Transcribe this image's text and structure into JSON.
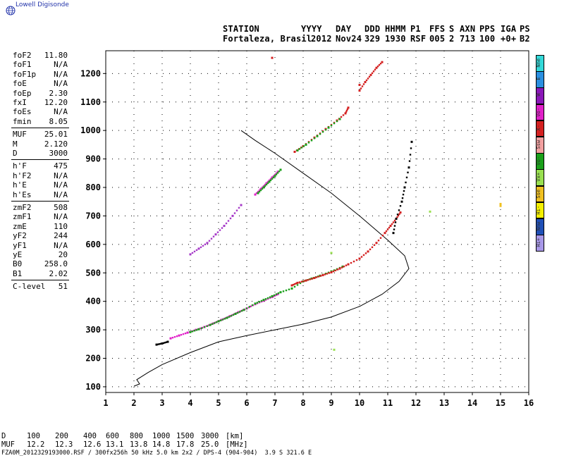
{
  "app": {
    "logo_text": "Lowell Digisonde"
  },
  "header": {
    "labels": [
      "STATION",
      "YYYY",
      "DAY",
      "DDD",
      "HHMM",
      "P1",
      "FFS",
      "S",
      "AXN",
      "PPS",
      "IGA",
      "PS"
    ],
    "values": [
      "Fortaleza, Brasil",
      "2012",
      "Nov24",
      "329",
      "1930",
      "RSF",
      "005",
      "2",
      "713",
      "100",
      "+0+",
      "B2"
    ]
  },
  "params": {
    "group1": [
      {
        "label": "foF2",
        "value": "11.80"
      },
      {
        "label": "foF1",
        "value": "N/A"
      },
      {
        "label": "foF1p",
        "value": "N/A"
      },
      {
        "label": "foE",
        "value": "N/A"
      },
      {
        "label": "foEp",
        "value": "2.30"
      },
      {
        "label": "fxI",
        "value": "12.20"
      },
      {
        "label": "foEs",
        "value": "N/A"
      },
      {
        "label": "fmin",
        "value": "8.05"
      }
    ],
    "group2": [
      {
        "label": "MUF",
        "value": "25.01"
      },
      {
        "label": "M",
        "value": "2.120"
      },
      {
        "label": "D",
        "value": "3000"
      }
    ],
    "group3": [
      {
        "label": "h'F",
        "value": "475"
      },
      {
        "label": "h'F2",
        "value": "N/A"
      },
      {
        "label": "h'E",
        "value": "N/A"
      },
      {
        "label": "h'Es",
        "value": "N/A"
      }
    ],
    "group4": [
      {
        "label": "zmF2",
        "value": "508"
      },
      {
        "label": "zmF1",
        "value": "N/A"
      },
      {
        "label": "zmE",
        "value": "110"
      },
      {
        "label": "yF2",
        "value": "244"
      },
      {
        "label": "yF1",
        "value": "N/A"
      },
      {
        "label": "yE",
        "value": "20"
      },
      {
        "label": "B0",
        "value": "258.0"
      },
      {
        "label": "B1",
        "value": "2.02"
      }
    ],
    "group5": [
      {
        "label": "C-level",
        "value": "51"
      }
    ]
  },
  "legend": [
    {
      "label": "Nne",
      "color": "#33d9d9"
    },
    {
      "label": "E",
      "color": "#2a8fe0"
    },
    {
      "label": "W",
      "color": "#8a17b8"
    },
    {
      "label": "Vo-",
      "color": "#e020c8"
    },
    {
      "label": "X-",
      "color": "#d42020"
    },
    {
      "label": "Ssw",
      "color": "#f2a0a0"
    },
    {
      "label": "Vo-",
      "color": "#1aa01a"
    },
    {
      "label": "Vx+",
      "color": "#99e050"
    },
    {
      "label": "Sse",
      "color": "#f0c020"
    },
    {
      "label": "Hi-",
      "color": "#f5f000"
    },
    {
      "label": "Nnw",
      "color": "#2050b8"
    },
    {
      "label": "Hi+",
      "color": "#a898e8"
    }
  ],
  "footer": {
    "d_label": "D",
    "d_values": [
      "100",
      "200",
      "400",
      "600",
      "800",
      "1000",
      "1500",
      "3000"
    ],
    "d_unit": "[km]",
    "muf_label": "MUF",
    "muf_values": [
      "12.2",
      "12.3",
      "12.6",
      "13.1",
      "13.8",
      "14.8",
      "17.8",
      "25.0"
    ],
    "muf_unit": "[MHz]",
    "file_info": "FZA0M_2012329193000.RSF / 300fx256h 50 kHz 5.0 km 2x2 / DPS-4 (904-904)  3.9 S 321.6 E"
  },
  "chart_data": {
    "type": "scatter",
    "xlim": [
      1,
      16
    ],
    "ylim": [
      80,
      1280
    ],
    "x_ticks": [
      1,
      2,
      3,
      4,
      5,
      6,
      7,
      8,
      9,
      10,
      11,
      12,
      13,
      14,
      15,
      16
    ],
    "y_ticks": [
      100,
      200,
      300,
      400,
      500,
      600,
      700,
      800,
      900,
      1000,
      1100,
      1200
    ],
    "grid": "dotted",
    "series": [
      {
        "color": "#e020c8",
        "points": [
          [
            3.3,
            270
          ],
          [
            3.6,
            280
          ],
          [
            3.9,
            290
          ],
          [
            4.2,
            300
          ],
          [
            4.5,
            310
          ],
          [
            4.8,
            322
          ],
          [
            5.1,
            335
          ],
          [
            5.4,
            348
          ],
          [
            5.7,
            362
          ],
          [
            6.0,
            375
          ],
          [
            6.3,
            390
          ],
          [
            6.6,
            402
          ],
          [
            6.9,
            415
          ],
          [
            7.1,
            425
          ]
        ]
      },
      {
        "color": "#1aa01a",
        "points": [
          [
            4.0,
            292
          ],
          [
            4.3,
            302
          ],
          [
            4.7,
            317
          ],
          [
            5.0,
            330
          ],
          [
            5.3,
            342
          ],
          [
            5.6,
            356
          ],
          [
            5.9,
            370
          ],
          [
            6.3,
            392
          ],
          [
            6.6,
            405
          ],
          [
            6.9,
            418
          ],
          [
            7.2,
            432
          ],
          [
            7.6,
            445
          ],
          [
            8.0,
            470
          ],
          [
            8.3,
            480
          ],
          [
            8.6,
            490
          ],
          [
            9.0,
            505
          ],
          [
            9.4,
            522
          ]
        ]
      },
      {
        "color": "#000000",
        "points": [
          [
            2.8,
            248
          ],
          [
            3.0,
            252
          ],
          [
            3.2,
            258
          ]
        ]
      },
      {
        "color": "#d42020",
        "points": [
          [
            7.6,
            456
          ],
          [
            7.8,
            465
          ],
          [
            8.1,
            473
          ],
          [
            8.4,
            482
          ],
          [
            8.7,
            492
          ],
          [
            9.0,
            502
          ],
          [
            9.3,
            515
          ],
          [
            9.6,
            530
          ],
          [
            10.0,
            550
          ],
          [
            10.3,
            575
          ],
          [
            10.6,
            605
          ],
          [
            10.9,
            640
          ],
          [
            11.1,
            665
          ],
          [
            11.3,
            690
          ],
          [
            11.45,
            712
          ]
        ]
      },
      {
        "color": "#d42020",
        "points": [
          [
            7.7,
            925
          ],
          [
            8.0,
            945
          ],
          [
            8.4,
            975
          ],
          [
            8.8,
            1005
          ],
          [
            9.2,
            1035
          ],
          [
            9.5,
            1060
          ],
          [
            9.6,
            1080
          ]
        ]
      },
      {
        "color": "#1aa01a",
        "points": [
          [
            7.8,
            930
          ],
          [
            8.1,
            950
          ],
          [
            8.5,
            980
          ],
          [
            8.9,
            1010
          ],
          [
            9.3,
            1040
          ]
        ]
      },
      {
        "color": "#d42020",
        "points": [
          [
            10.0,
            1140
          ],
          [
            10.2,
            1170
          ],
          [
            10.4,
            1195
          ],
          [
            10.6,
            1220
          ],
          [
            10.8,
            1240
          ]
        ]
      },
      {
        "color": "#e020c8",
        "points": [
          [
            6.3,
            775
          ],
          [
            6.5,
            795
          ],
          [
            6.7,
            815
          ],
          [
            6.9,
            835
          ],
          [
            7.1,
            855
          ]
        ]
      },
      {
        "color": "#1aa01a",
        "points": [
          [
            6.4,
            780
          ],
          [
            6.6,
            800
          ],
          [
            6.8,
            820
          ],
          [
            7.0,
            840
          ],
          [
            7.2,
            862
          ]
        ]
      },
      {
        "color": "#a63ac8",
        "points": [
          [
            4.0,
            565
          ],
          [
            4.3,
            585
          ],
          [
            4.6,
            605
          ],
          [
            4.9,
            635
          ],
          [
            5.2,
            665
          ],
          [
            5.5,
            700
          ],
          [
            5.8,
            738
          ]
        ]
      },
      {
        "color": "#000000",
        "points": [
          [
            11.2,
            640
          ],
          [
            11.3,
            690
          ],
          [
            11.5,
            750
          ],
          [
            11.6,
            800
          ],
          [
            11.75,
            870
          ],
          [
            11.85,
            960
          ]
        ]
      },
      {
        "color": "#99e050",
        "points": [
          [
            12.5,
            715
          ],
          [
            9.0,
            570
          ],
          [
            9.1,
            230
          ]
        ]
      },
      {
        "color": "#f0c020",
        "points": [
          [
            15.0,
            735
          ],
          [
            15.0,
            742
          ]
        ]
      },
      {
        "color": "#d42020",
        "points": [
          [
            6.9,
            1255
          ],
          [
            10.0,
            1160
          ]
        ]
      }
    ],
    "profile": [
      [
        2.0,
        102
      ],
      [
        2.2,
        110
      ],
      [
        2.1,
        125
      ],
      [
        2.5,
        150
      ],
      [
        3.0,
        178
      ],
      [
        4.0,
        220
      ],
      [
        5.0,
        258
      ],
      [
        6.0,
        280
      ],
      [
        7.0,
        300
      ],
      [
        8.0,
        320
      ],
      [
        9.0,
        345
      ],
      [
        10.0,
        382
      ],
      [
        10.8,
        425
      ],
      [
        11.4,
        470
      ],
      [
        11.75,
        515
      ],
      [
        11.6,
        560
      ],
      [
        11.0,
        615
      ],
      [
        10.0,
        700
      ],
      [
        9.0,
        780
      ],
      [
        8.0,
        850
      ],
      [
        7.0,
        920
      ],
      [
        6.3,
        965
      ],
      [
        5.8,
        1000
      ]
    ]
  }
}
